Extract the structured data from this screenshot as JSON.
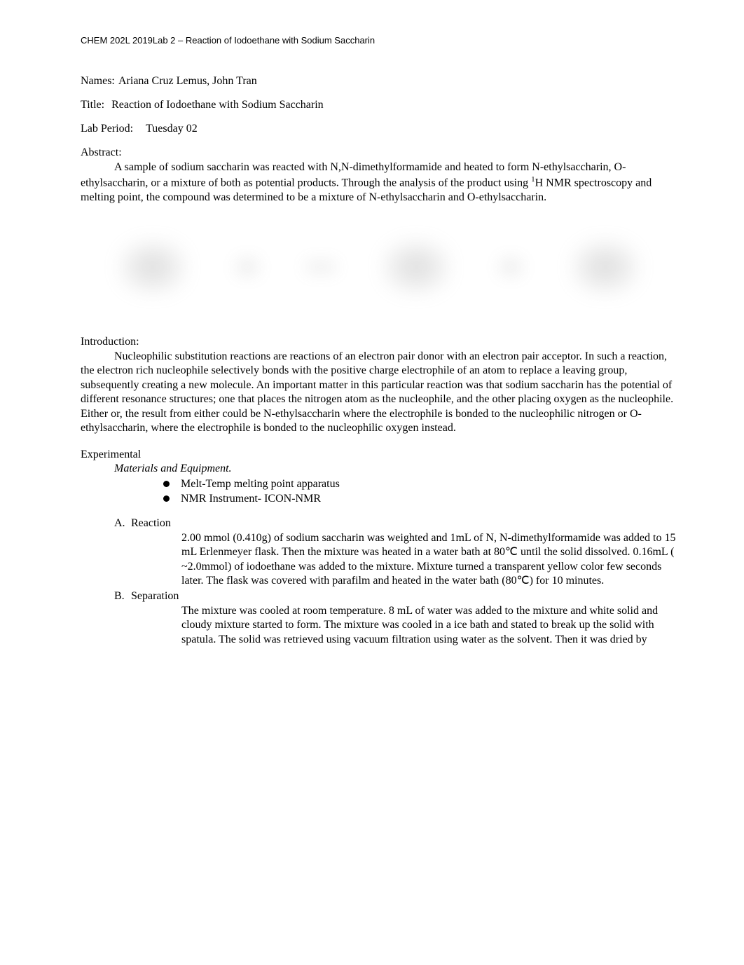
{
  "header": "CHEM 202L 2019Lab 2 – Reaction of Iodoethane with Sodium Saccharin",
  "names": {
    "label": "Names:",
    "value": "Ariana Cruz Lemus, John Tran"
  },
  "title_row": {
    "label": "Title:",
    "value": "Reaction of Iodoethane with Sodium Saccharin"
  },
  "labperiod": {
    "label": "Lab Period:",
    "value": "Tuesday 02"
  },
  "abstract": {
    "label": "Abstract:",
    "body_pre": "A sample of sodium saccharin was reacted with N,N-dimethylformamide and heated to form N-ethylsaccharin, O-ethylsaccharin, or a mixture of both as potential products. Through the analysis of the product using ",
    "sup": "1",
    "body_post": "H NMR spectroscopy and melting point, the compound was determined to be a mixture of N-ethylsaccharin and O-ethylsaccharin."
  },
  "introduction": {
    "label": "Introduction:",
    "body": "Nucleophilic substitution reactions are reactions of an electron pair donor with an electron pair acceptor. In such a reaction, the electron rich nucleophile selectively bonds with the positive charge electrophile of an atom to replace a leaving group, subsequently creating a new molecule. An important matter in this particular reaction was that sodium saccharin has the potential of different resonance structures; one that places the nitrogen atom as the nucleophile, and the other placing oxygen as the nucleophile. Either or, the result from either could be N-ethylsaccharin where the electrophile is bonded to the nucleophilic nitrogen or O-ethylsaccharin, where the electrophile is bonded to the nucleophilic oxygen instead."
  },
  "experimental": {
    "label": "Experimental",
    "materials_label": "Materials and Equipment.",
    "bullets": [
      "Melt-Temp melting point apparatus",
      "NMR Instrument- ICON-NMR"
    ],
    "sectionA": {
      "letter": "A.",
      "title": "Reaction",
      "body": "2.00 mmol (0.410g) of sodium saccharin was weighted and 1mL of  N, N-dimethylformamide was added to 15 mL Erlenmeyer flask. Then the  mixture was heated in a water bath at 80℃ until the solid dissolved. 0.16mL ( ~2.0mmol) of iodoethane was added to the mixture. Mixture turned a transparent yellow color few seconds later. The flask was covered with parafilm and heated in the water bath (80℃) for 10 minutes."
    },
    "sectionB": {
      "letter": "B.",
      "title": "Separation",
      "body": "The mixture was cooled at room temperature. 8 mL of water was added to the mixture and white solid and cloudy mixture started to form. The mixture was cooled in a ice bath and stated to break up the solid with spatula. The solid was retrieved using vacuum filtration using water as the solvent. Then it was dried by"
    }
  },
  "colors": {
    "background": "#ffffff",
    "text": "#000000"
  },
  "typography": {
    "body_font": "Times New Roman",
    "header_font": "Verdana",
    "body_size_pt": 12,
    "header_size_pt": 10
  }
}
